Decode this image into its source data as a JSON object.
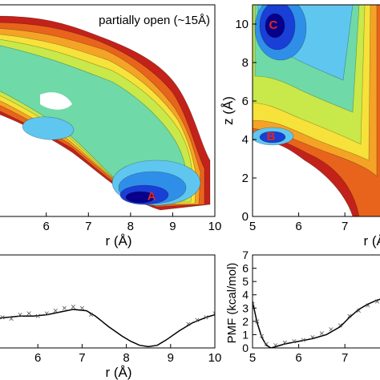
{
  "chart_data": [
    {
      "type": "heatmap",
      "title": "partially open (~15Å)",
      "xlabel": "r (Å)",
      "ylabel": "",
      "xlim": [
        4.75,
        10
      ],
      "ylim": [
        0,
        11
      ],
      "xticks": [
        "6",
        "7",
        "8",
        "9",
        "10"
      ],
      "yticks": [],
      "annotations": [
        {
          "text": "A",
          "x": 8.5,
          "y": 1.1
        }
      ],
      "colorscale": [
        "#08008a",
        "#1a3fd6",
        "#2f8fe8",
        "#5fc6f0",
        "#6fd9a8",
        "#c9e84a",
        "#f6e23a",
        "#f4a326",
        "#e8641c",
        "#c2221a"
      ]
    },
    {
      "type": "heatmap",
      "title": "",
      "xlabel": "r (Å)",
      "ylabel": "z (Å)",
      "xlim": [
        5,
        7.9
      ],
      "ylim": [
        0,
        11
      ],
      "xticks": [
        "5",
        "6",
        "7"
      ],
      "yticks": [
        "0",
        "2",
        "4",
        "6",
        "8",
        "10"
      ],
      "annotations": [
        {
          "text": "C",
          "x": 5.45,
          "y": 10.0
        },
        {
          "text": "B",
          "x": 5.4,
          "y": 4.2
        }
      ],
      "colorscale": [
        "#08008a",
        "#1a3fd6",
        "#2f8fe8",
        "#5fc6f0",
        "#6fd9a8",
        "#c9e84a",
        "#f6e23a",
        "#f4a326",
        "#e8641c",
        "#c2221a"
      ]
    },
    {
      "type": "line",
      "title": "",
      "xlabel": "r (Å)",
      "ylabel": "",
      "xlim": [
        5,
        10
      ],
      "ylim": [
        0,
        7
      ],
      "xticks": [
        "6",
        "7",
        "8",
        "9",
        "10"
      ],
      "series": [
        {
          "style": "line",
          "x": [
            4.7,
            5.0,
            5.3,
            5.6,
            5.9,
            6.2,
            6.5,
            6.8,
            7.1,
            7.3,
            7.6,
            7.9,
            8.1,
            8.3,
            8.5,
            8.7,
            8.9,
            9.2,
            9.5,
            9.8,
            10.0
          ],
          "y": [
            2.1,
            2.2,
            2.3,
            2.4,
            2.4,
            2.5,
            2.7,
            2.9,
            2.8,
            2.4,
            1.6,
            0.9,
            0.5,
            0.2,
            0.1,
            0.2,
            0.6,
            1.3,
            1.9,
            2.3,
            2.5
          ]
        },
        {
          "style": "markers",
          "x": [
            5.0,
            5.2,
            5.4,
            5.6,
            5.8,
            6.0,
            6.2,
            6.4,
            6.6,
            6.8,
            7.0,
            7.2,
            9.4,
            9.6,
            9.8,
            10.0
          ],
          "y": [
            2.0,
            2.3,
            2.2,
            2.5,
            2.6,
            2.4,
            2.6,
            2.8,
            3.0,
            3.1,
            3.0,
            2.5,
            1.8,
            2.1,
            2.3,
            2.6
          ]
        }
      ]
    },
    {
      "type": "line",
      "title": "",
      "xlabel": "",
      "ylabel": "PMF (kcal/mol)",
      "xlim": [
        5,
        7.9
      ],
      "ylim": [
        0,
        7
      ],
      "xticks": [
        "5",
        "6",
        "7"
      ],
      "yticks": [
        "0",
        "1",
        "2",
        "3",
        "4",
        "5",
        "6",
        "7"
      ],
      "series": [
        {
          "style": "line",
          "x": [
            5.0,
            5.1,
            5.2,
            5.3,
            5.4,
            5.5,
            5.7,
            6.0,
            6.3,
            6.6,
            6.9,
            7.1,
            7.3,
            7.5,
            7.7,
            7.9
          ],
          "y": [
            3.5,
            1.9,
            0.8,
            0.2,
            0.0,
            0.1,
            0.3,
            0.5,
            0.7,
            1.0,
            1.6,
            2.3,
            2.9,
            3.3,
            3.6,
            3.8
          ]
        },
        {
          "style": "markers",
          "x": [
            5.0,
            5.1,
            5.2,
            5.3,
            5.5,
            5.7,
            5.9,
            6.1,
            6.3,
            6.5,
            6.7,
            6.9,
            7.1,
            7.3,
            7.5,
            7.7
          ],
          "y": [
            3.3,
            2.0,
            0.9,
            0.3,
            0.2,
            0.4,
            0.5,
            0.6,
            0.8,
            1.1,
            1.4,
            1.7,
            2.4,
            2.8,
            3.2,
            3.5
          ]
        }
      ]
    }
  ]
}
